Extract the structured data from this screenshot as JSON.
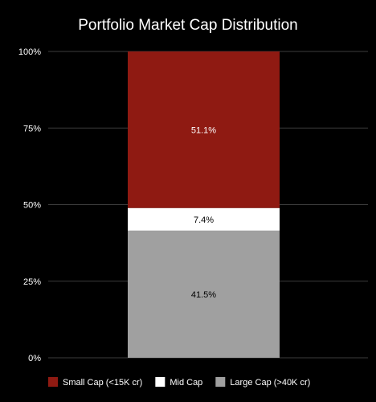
{
  "chart_data": {
    "type": "bar",
    "stacked": true,
    "title": "Portfolio Market Cap Distribution",
    "xlabel": "",
    "ylabel": "",
    "ylim": [
      0,
      100
    ],
    "y_ticks": [
      "0%",
      "25%",
      "50%",
      "75%",
      "100%"
    ],
    "grid": true,
    "legend_position": "bottom",
    "categories": [
      ""
    ],
    "series": [
      {
        "name": "Large Cap (>40K cr)",
        "values": [
          41.5
        ],
        "label": "41.5%",
        "color": "#a0a0a0",
        "label_color": "#000000"
      },
      {
        "name": "Mid Cap",
        "values": [
          7.4
        ],
        "label": "7.4%",
        "color": "#ffffff",
        "label_color": "#000000"
      },
      {
        "name": "Small Cap (<15K cr)",
        "values": [
          51.1
        ],
        "label": "51.1%",
        "color": "#8f1a12",
        "label_color": "#ffffff"
      }
    ],
    "legend_order": [
      "Small Cap (<15K cr)",
      "Mid Cap",
      "Large Cap (>40K cr)"
    ]
  },
  "colors": {
    "background": "#000000",
    "grid": "#3c3c3c",
    "text": "#ffffff"
  }
}
